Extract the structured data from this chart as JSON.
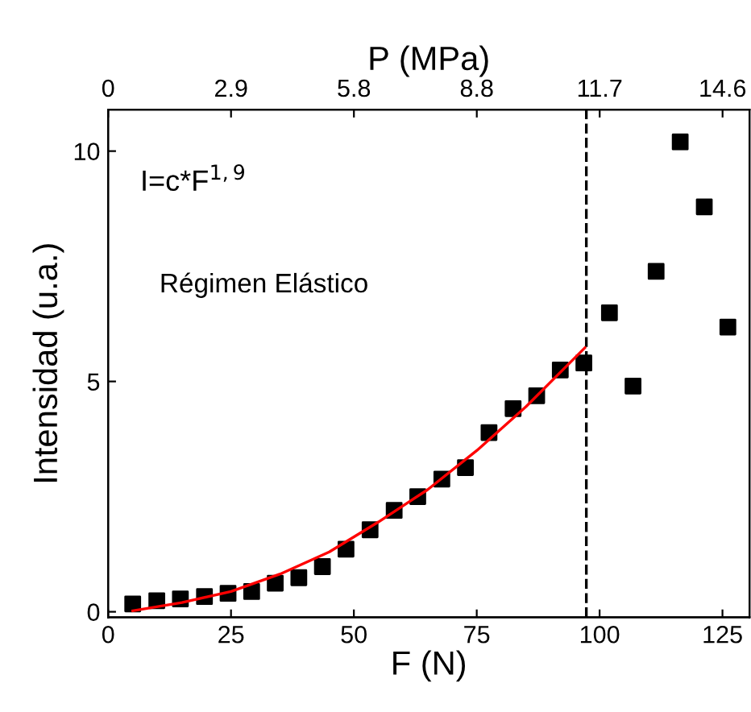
{
  "chart_data": {
    "type": "scatter",
    "xlabel": "F (N)",
    "ylabel": "Intensidad (u.a.)",
    "x2label": "P (MPa)",
    "xlim": [
      0,
      130.5
    ],
    "xticks": [
      0,
      25,
      50,
      75,
      100,
      125
    ],
    "x2lim": [
      0,
      15.24
    ],
    "x2ticks": [
      0,
      {
        "value": 2.92,
        "label": "2.9"
      },
      {
        "value": 5.84,
        "label": "5.8"
      },
      {
        "value": 8.76,
        "label": "8.8"
      },
      {
        "value": 11.68,
        "label": "11.7"
      },
      14.6
    ],
    "ylim": [
      -0.12,
      10.9
    ],
    "yticks": [
      0,
      5,
      10
    ],
    "grid": false,
    "series": [
      {
        "marker": "square",
        "color": "#000000",
        "x": [
          5.0,
          9.9,
          14.7,
          19.6,
          24.4,
          29.2,
          34.0,
          38.8,
          43.6,
          48.4,
          53.3,
          58.2,
          63.0,
          67.9,
          72.7,
          77.5,
          82.4,
          87.2,
          92.0,
          96.8,
          102.0,
          106.8,
          111.5,
          116.4,
          121.3,
          126.1
        ],
        "values": [
          0.17,
          0.24,
          0.28,
          0.33,
          0.4,
          0.44,
          0.62,
          0.74,
          0.98,
          1.36,
          1.78,
          2.2,
          2.5,
          2.88,
          3.13,
          3.89,
          4.41,
          4.69,
          5.25,
          5.4,
          6.49,
          4.9,
          7.39,
          10.2,
          8.79,
          6.18
        ]
      },
      {
        "type": "line",
        "color": "#ff0000",
        "line_style": "solid",
        "x": [
          5,
          15,
          25,
          35,
          45,
          55,
          65,
          75,
          85,
          97
        ],
        "values": [
          0.02,
          0.2,
          0.44,
          0.82,
          1.3,
          1.95,
          2.65,
          3.5,
          4.45,
          5.73
        ]
      }
    ],
    "ref_lines": [
      {
        "axis": "x",
        "value": 97.3,
        "color": "#000000",
        "line_style": "dashed"
      }
    ],
    "annotations": [
      "I=c*F$^{1,9}$",
      "Régimen Elástico"
    ]
  }
}
